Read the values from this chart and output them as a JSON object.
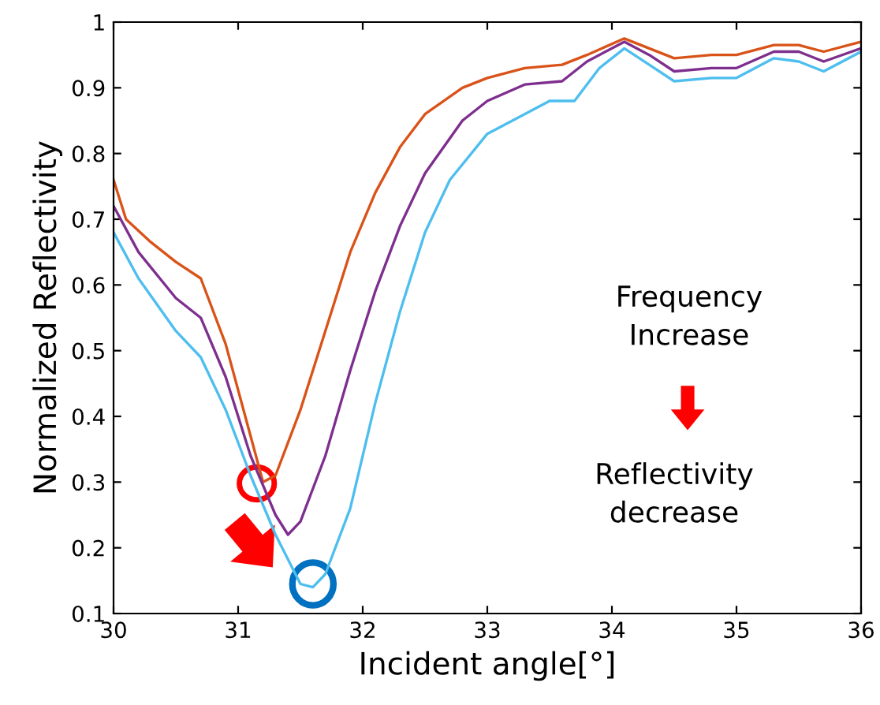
{
  "chart_data": {
    "type": "line",
    "xlabel": "Incident angle[°]",
    "ylabel": "Normalized Reflectivity",
    "xlim": [
      30,
      36
    ],
    "ylim": [
      0.1,
      1
    ],
    "xticks": [
      30,
      31,
      32,
      33,
      34,
      35,
      36
    ],
    "yticks": [
      0.1,
      0.2,
      0.3,
      0.4,
      0.5,
      0.6,
      0.7,
      0.8,
      0.9,
      1
    ],
    "grid": false,
    "marker": "none",
    "line_style": "solid",
    "annotations": [
      "Frequency\nIncrease",
      "Reflectivity\ndecrease"
    ],
    "series": [
      {
        "color": "#d95319",
        "x": [
          30,
          30.1,
          30.3,
          30.5,
          30.7,
          30.9,
          31.1,
          31.2,
          31.3,
          31.5,
          31.7,
          31.9,
          32.1,
          32.3,
          32.5,
          32.8,
          33.0,
          33.3,
          33.6,
          33.8,
          34.1,
          34.3,
          34.5,
          34.8,
          35.0,
          35.3,
          35.5,
          35.7,
          36.0
        ],
        "values": [
          0.76,
          0.7,
          0.665,
          0.635,
          0.61,
          0.51,
          0.37,
          0.3,
          0.31,
          0.41,
          0.53,
          0.65,
          0.74,
          0.81,
          0.86,
          0.9,
          0.915,
          0.93,
          0.935,
          0.95,
          0.975,
          0.96,
          0.945,
          0.95,
          0.95,
          0.965,
          0.965,
          0.955,
          0.97
        ]
      },
      {
        "color": "#7e2f8e",
        "x": [
          30,
          30.2,
          30.5,
          30.7,
          30.9,
          31.1,
          31.3,
          31.4,
          31.5,
          31.7,
          31.9,
          32.1,
          32.3,
          32.5,
          32.8,
          33.0,
          33.3,
          33.6,
          33.8,
          34.1,
          34.3,
          34.5,
          34.8,
          35.0,
          35.3,
          35.5,
          35.7,
          36.0
        ],
        "values": [
          0.72,
          0.65,
          0.58,
          0.55,
          0.46,
          0.34,
          0.25,
          0.22,
          0.24,
          0.34,
          0.47,
          0.59,
          0.69,
          0.77,
          0.85,
          0.88,
          0.905,
          0.91,
          0.94,
          0.97,
          0.95,
          0.925,
          0.93,
          0.93,
          0.955,
          0.955,
          0.94,
          0.96
        ]
      },
      {
        "color": "#4dbeee",
        "x": [
          30,
          30.2,
          30.5,
          30.7,
          30.9,
          31.1,
          31.3,
          31.5,
          31.6,
          31.7,
          31.9,
          32.1,
          32.3,
          32.5,
          32.7,
          33.0,
          33.3,
          33.5,
          33.7,
          33.9,
          34.1,
          34.3,
          34.5,
          34.8,
          35.0,
          35.3,
          35.5,
          35.7,
          36.0
        ],
        "values": [
          0.68,
          0.61,
          0.53,
          0.49,
          0.41,
          0.31,
          0.22,
          0.145,
          0.14,
          0.16,
          0.26,
          0.42,
          0.56,
          0.68,
          0.76,
          0.83,
          0.86,
          0.88,
          0.88,
          0.93,
          0.96,
          0.935,
          0.91,
          0.915,
          0.915,
          0.945,
          0.94,
          0.925,
          0.955
        ]
      }
    ]
  }
}
